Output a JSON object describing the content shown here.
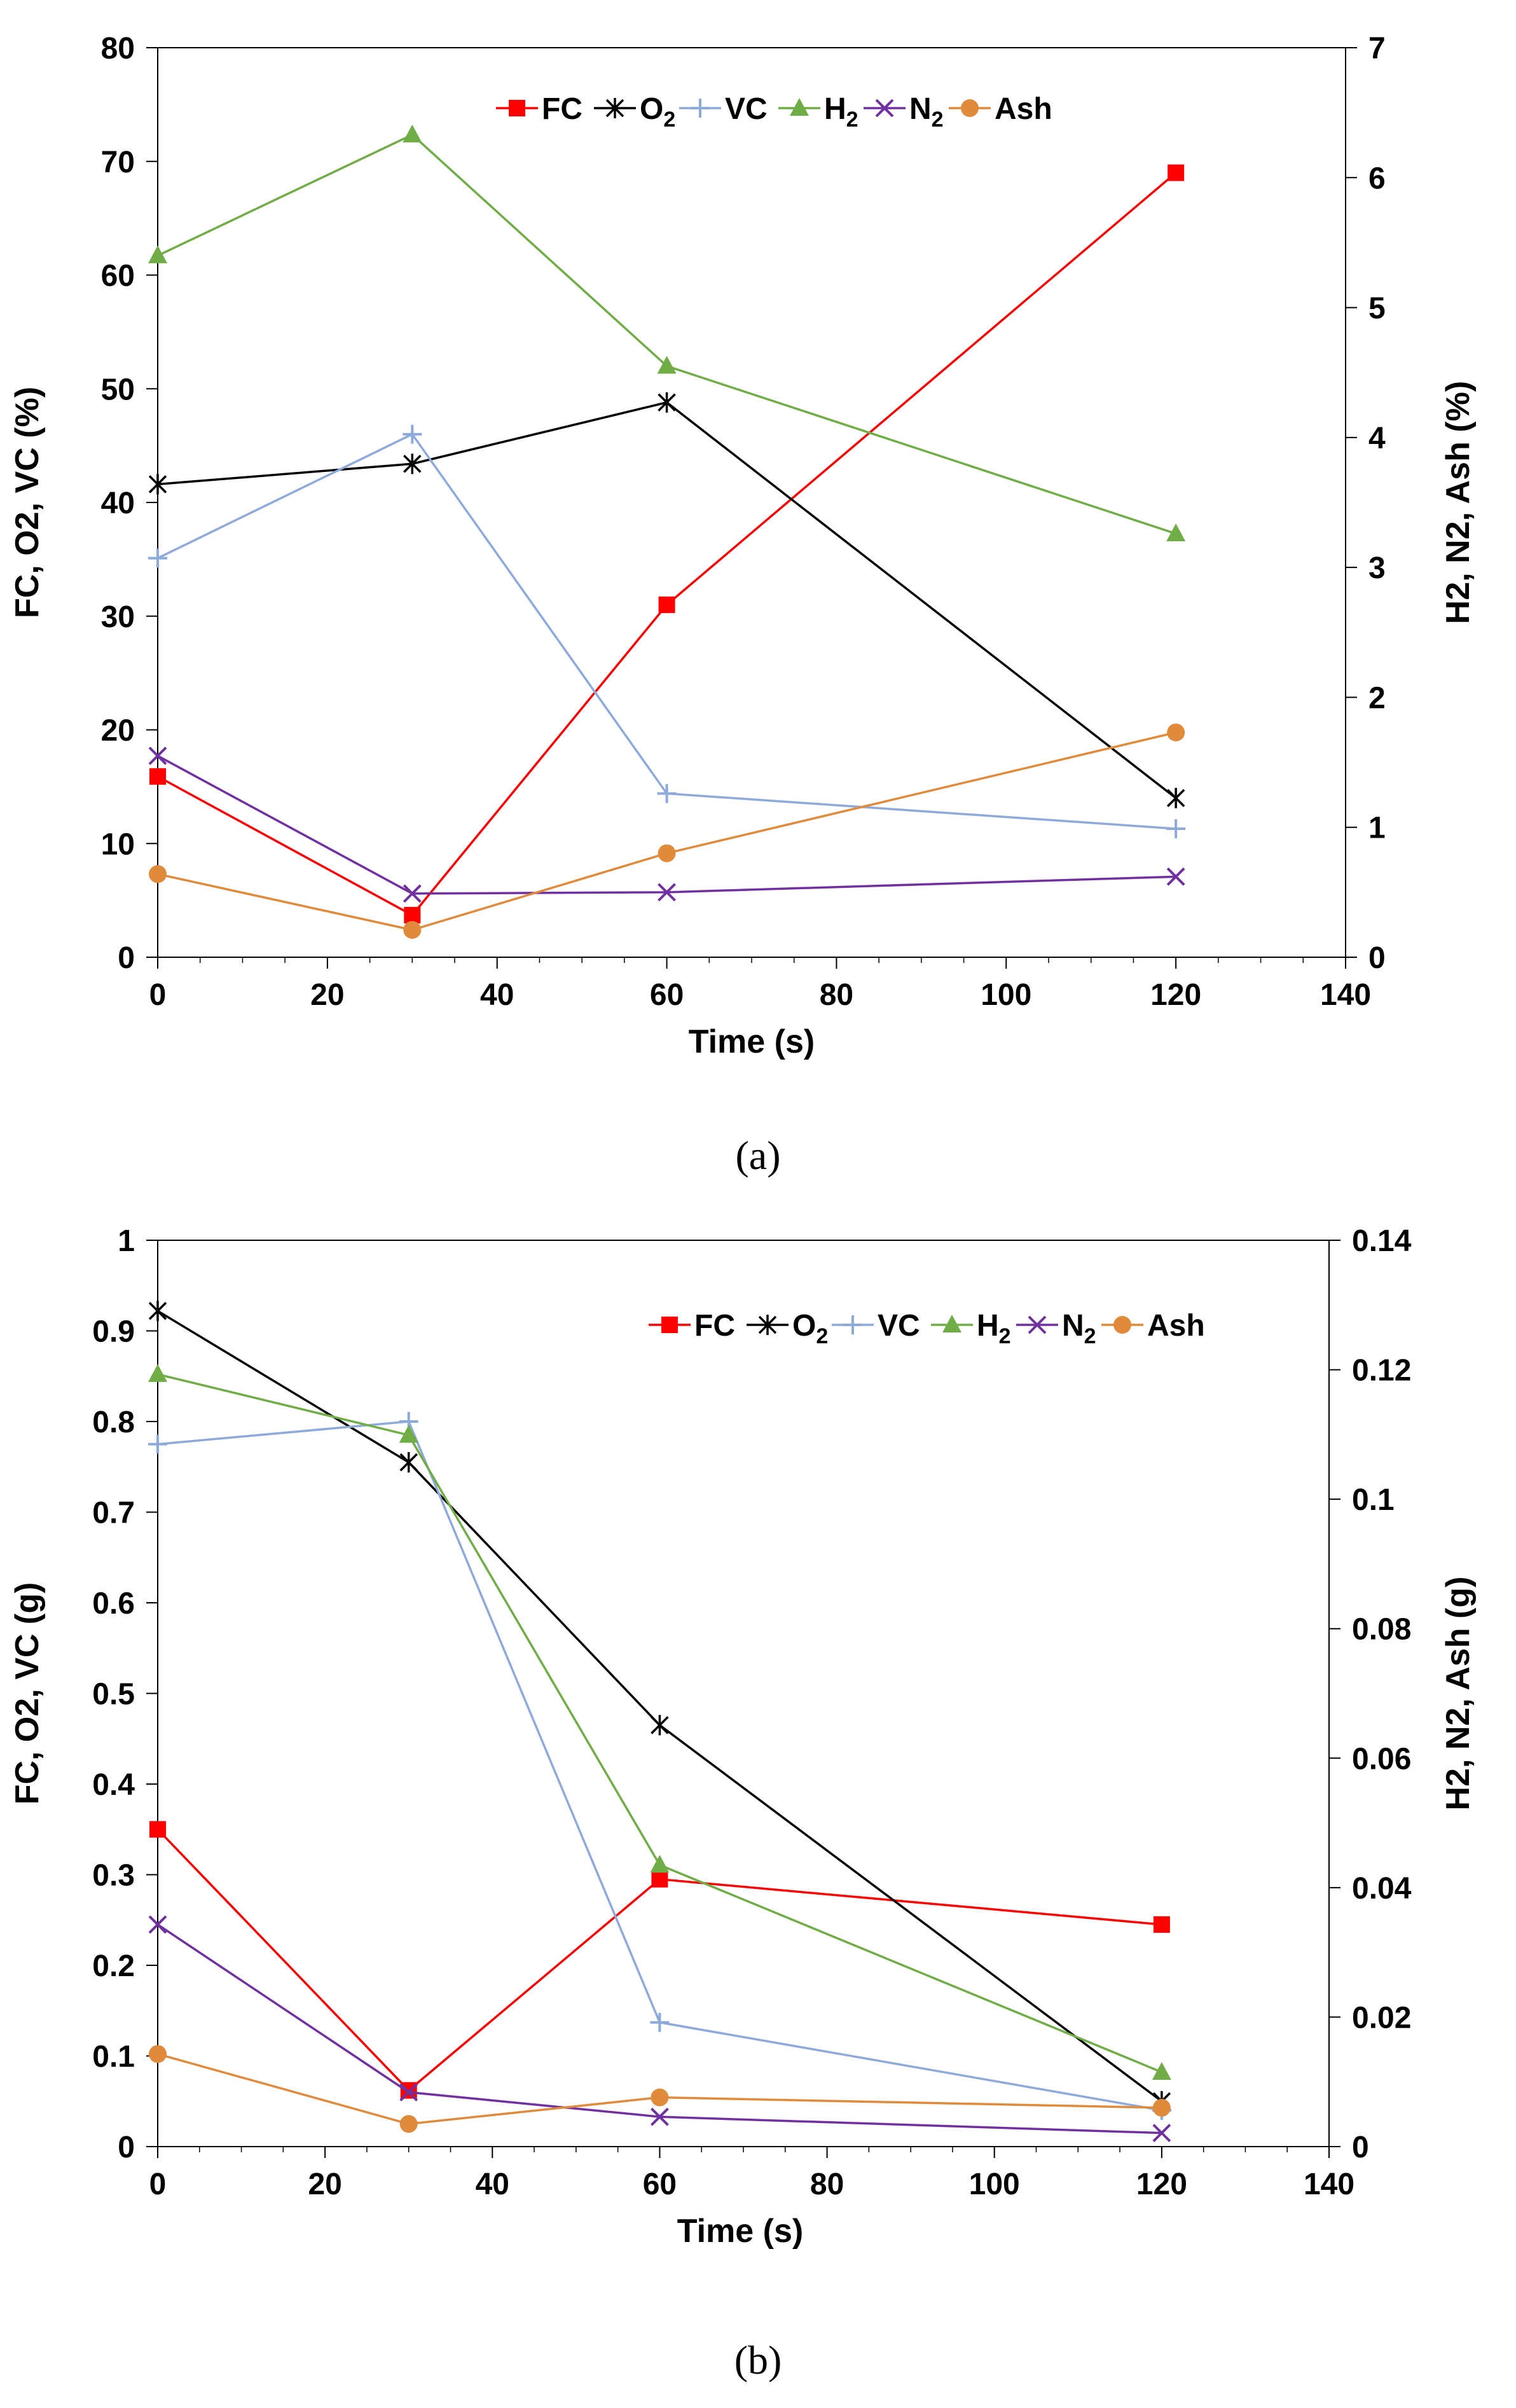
{
  "chart_data": [
    {
      "type": "line",
      "caption": "(a)",
      "xlabel": "Time (s)",
      "ylabel_left": "FC, O2, VC (%)",
      "ylabel_right": "H2, N2, Ash (%)",
      "xlim": [
        0,
        140
      ],
      "ylim_left": [
        0,
        80
      ],
      "ylim_right": [
        0,
        7
      ],
      "xticks": [
        "0",
        "20",
        "40",
        "60",
        "80",
        "100",
        "120",
        "140"
      ],
      "yticks_left": [
        "0",
        "10",
        "20",
        "30",
        "40",
        "50",
        "60",
        "70",
        "80"
      ],
      "yticks_right": [
        "0",
        "1",
        "2",
        "3",
        "4",
        "5",
        "6",
        "7"
      ],
      "legend": {
        "position": "top-center"
      },
      "x": [
        0,
        30,
        60,
        120
      ],
      "series": [
        {
          "name": "FC",
          "label": "FC",
          "sub": "",
          "axis": "left",
          "color": "#ff0000",
          "marker": "square",
          "values": [
            15.9,
            3.7,
            31.0,
            69.0
          ]
        },
        {
          "name": "O2",
          "label": "O",
          "sub": "2",
          "axis": "left",
          "color": "#000000",
          "marker": "asterisk",
          "values": [
            41.6,
            43.4,
            48.8,
            14.0
          ]
        },
        {
          "name": "VC",
          "label": "VC",
          "sub": "",
          "axis": "left",
          "color": "#8eaadb",
          "marker": "plus",
          "values": [
            35.1,
            46.0,
            14.4,
            11.3
          ]
        },
        {
          "name": "H2",
          "label": "H",
          "sub": "2",
          "axis": "right",
          "color": "#70ad47",
          "marker": "triangle",
          "values": [
            5.4,
            6.33,
            4.55,
            3.26
          ]
        },
        {
          "name": "N2",
          "label": "N",
          "sub": "2",
          "axis": "right",
          "color": "#7030a0",
          "marker": "x",
          "values": [
            1.55,
            0.49,
            0.5,
            0.62
          ]
        },
        {
          "name": "Ash",
          "label": "Ash",
          "sub": "",
          "axis": "right",
          "color": "#e08a3c",
          "marker": "circle",
          "values": [
            0.64,
            0.21,
            0.8,
            1.73
          ]
        }
      ]
    },
    {
      "type": "line",
      "caption": "(b)",
      "xlabel": "Time (s)",
      "ylabel_left": "FC, O2, VC (g)",
      "ylabel_right": "H2, N2, Ash (g)",
      "xlim": [
        0,
        140
      ],
      "ylim_left": [
        0,
        1
      ],
      "ylim_right": [
        0,
        0.14
      ],
      "xticks": [
        "0",
        "20",
        "40",
        "60",
        "80",
        "100",
        "120",
        "140"
      ],
      "yticks_left": [
        "0",
        "0.1",
        "0.2",
        "0.3",
        "0.4",
        "0.5",
        "0.6",
        "0.7",
        "0.8",
        "0.9",
        "1"
      ],
      "yticks_right": [
        "0",
        "0.02",
        "0.04",
        "0.06",
        "0.08",
        "0.1",
        "0.12",
        "0.14"
      ],
      "legend": {
        "position": "top-right"
      },
      "x": [
        0,
        30,
        60,
        120
      ],
      "series": [
        {
          "name": "FC",
          "label": "FC",
          "sub": "",
          "axis": "left",
          "color": "#ff0000",
          "marker": "square",
          "values": [
            0.35,
            0.062,
            0.295,
            0.245
          ]
        },
        {
          "name": "O2",
          "label": "O",
          "sub": "2",
          "axis": "left",
          "color": "#000000",
          "marker": "asterisk",
          "values": [
            0.922,
            0.755,
            0.465,
            0.05
          ]
        },
        {
          "name": "VC",
          "label": "VC",
          "sub": "",
          "axis": "left",
          "color": "#8eaadb",
          "marker": "plus",
          "values": [
            0.775,
            0.8,
            0.137,
            0.04
          ]
        },
        {
          "name": "H2",
          "label": "H",
          "sub": "2",
          "axis": "right",
          "color": "#70ad47",
          "marker": "triangle",
          "values": [
            0.1193,
            0.1099,
            0.0435,
            0.0115
          ]
        },
        {
          "name": "N2",
          "label": "N",
          "sub": "2",
          "axis": "right",
          "color": "#7030a0",
          "marker": "x",
          "values": [
            0.0343,
            0.0084,
            0.0046,
            0.0021
          ]
        },
        {
          "name": "Ash",
          "label": "Ash",
          "sub": "",
          "axis": "right",
          "color": "#e08a3c",
          "marker": "circle",
          "values": [
            0.0143,
            0.0035,
            0.0076,
            0.006
          ]
        }
      ]
    }
  ]
}
